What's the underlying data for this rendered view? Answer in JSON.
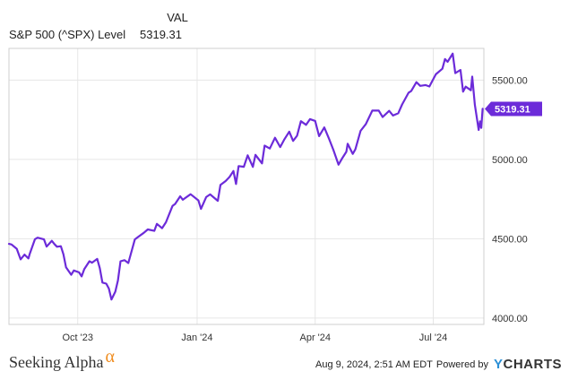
{
  "legend": {
    "header": "VAL",
    "series_label": "S&P 500 (^SPX) Level",
    "series_value": "5319.31"
  },
  "colors": {
    "line": "#6c2bd9",
    "grid": "#e6e6e6",
    "frame": "#cfcfcf"
  },
  "footer": {
    "brand": "Seeking Alpha",
    "brand_mark": "α",
    "timestamp": "Aug 9, 2024, 2:51 AM EDT",
    "powered_by": "Powered by",
    "provider": "YCHARTS"
  },
  "chart_data": {
    "type": "line",
    "title": "",
    "xlabel": "",
    "ylabel": "",
    "ylim": [
      3960,
      5700
    ],
    "y_ticks": [
      4000,
      4500,
      5000,
      5500
    ],
    "y_tick_labels": [
      "4000.00",
      "4500.00",
      "5000.00",
      "5500.00"
    ],
    "x_ticks": [
      "2023-10-01",
      "2024-01-01",
      "2024-04-01",
      "2024-07-01"
    ],
    "x_tick_labels": [
      "Oct '23",
      "Jan '24",
      "Apr '24",
      "Jul '24"
    ],
    "x_range": [
      "2023-08-09",
      "2024-08-09"
    ],
    "grid": true,
    "last_value_label": "5319.31",
    "series": [
      {
        "name": "S&P 500 (^SPX) Level",
        "x": [
          "2023-08-09",
          "2023-08-11",
          "2023-08-15",
          "2023-08-18",
          "2023-08-21",
          "2023-08-24",
          "2023-08-25",
          "2023-08-29",
          "2023-08-31",
          "2023-09-05",
          "2023-09-07",
          "2023-09-11",
          "2023-09-13",
          "2023-09-15",
          "2023-09-18",
          "2023-09-20",
          "2023-09-22",
          "2023-09-26",
          "2023-09-28",
          "2023-10-02",
          "2023-10-04",
          "2023-10-06",
          "2023-10-10",
          "2023-10-12",
          "2023-10-16",
          "2023-10-18",
          "2023-10-20",
          "2023-10-23",
          "2023-10-25",
          "2023-10-27",
          "2023-10-30",
          "2023-11-01",
          "2023-11-03",
          "2023-11-06",
          "2023-11-09",
          "2023-11-14",
          "2023-11-17",
          "2023-11-21",
          "2023-11-24",
          "2023-11-29",
          "2023-12-01",
          "2023-12-05",
          "2023-12-08",
          "2023-12-13",
          "2023-12-15",
          "2023-12-19",
          "2023-12-21",
          "2023-12-27",
          "2024-01-02",
          "2024-01-04",
          "2024-01-08",
          "2024-01-11",
          "2024-01-17",
          "2024-01-19",
          "2024-01-23",
          "2024-01-26",
          "2024-01-29",
          "2024-01-31",
          "2024-02-02",
          "2024-02-06",
          "2024-02-09",
          "2024-02-13",
          "2024-02-15",
          "2024-02-20",
          "2024-02-22",
          "2024-02-26",
          "2024-03-01",
          "2024-03-05",
          "2024-03-08",
          "2024-03-12",
          "2024-03-15",
          "2024-03-18",
          "2024-03-21",
          "2024-03-25",
          "2024-03-28",
          "2024-04-01",
          "2024-04-04",
          "2024-04-08",
          "2024-04-12",
          "2024-04-15",
          "2024-04-19",
          "2024-04-22",
          "2024-04-25",
          "2024-04-26",
          "2024-04-30",
          "2024-05-02",
          "2024-05-06",
          "2024-05-10",
          "2024-05-15",
          "2024-05-20",
          "2024-05-23",
          "2024-05-28",
          "2024-05-31",
          "2024-06-04",
          "2024-06-07",
          "2024-06-12",
          "2024-06-14",
          "2024-06-18",
          "2024-06-21",
          "2024-06-25",
          "2024-06-28",
          "2024-07-03",
          "2024-07-08",
          "2024-07-10",
          "2024-07-12",
          "2024-07-16",
          "2024-07-18",
          "2024-07-22",
          "2024-07-24",
          "2024-07-26",
          "2024-07-30",
          "2024-07-31",
          "2024-08-02",
          "2024-08-05",
          "2024-08-06",
          "2024-08-07",
          "2024-08-08"
        ],
        "values": [
          4468,
          4464,
          4437,
          4370,
          4400,
          4376,
          4405,
          4497,
          4507,
          4496,
          4451,
          4487,
          4467,
          4450,
          4453,
          4402,
          4320,
          4273,
          4300,
          4288,
          4263,
          4308,
          4358,
          4349,
          4373,
          4314,
          4224,
          4217,
          4186,
          4117,
          4167,
          4237,
          4358,
          4365,
          4347,
          4496,
          4514,
          4538,
          4559,
          4550,
          4594,
          4567,
          4604,
          4707,
          4719,
          4768,
          4746,
          4781,
          4742,
          4688,
          4763,
          4780,
          4739,
          4839,
          4864,
          4890,
          4927,
          4845,
          4958,
          4954,
          5026,
          4953,
          5029,
          4975,
          5087,
          5069,
          5137,
          5078,
          5123,
          5175,
          5117,
          5149,
          5241,
          5218,
          5254,
          5243,
          5147,
          5202,
          5123,
          5061,
          4967,
          5010,
          5048,
          5099,
          5035,
          5064,
          5180,
          5222,
          5308,
          5308,
          5267,
          5306,
          5277,
          5291,
          5347,
          5421,
          5431,
          5487,
          5464,
          5469,
          5460,
          5537,
          5572,
          5633,
          5615,
          5667,
          5544,
          5564,
          5427,
          5459,
          5436,
          5522,
          5346,
          5186,
          5240,
          5199,
          5319
        ]
      }
    ]
  }
}
